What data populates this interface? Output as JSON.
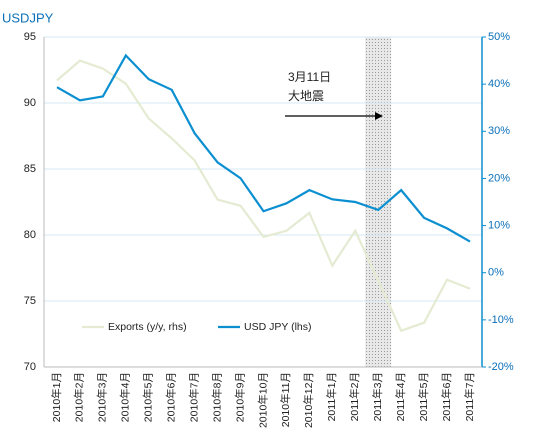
{
  "chart_data": {
    "type": "line",
    "title": "USDJPY",
    "categories": [
      "2010年1月",
      "2010年2月",
      "2010年3月",
      "2010年4月",
      "2010年5月",
      "2010年6月",
      "2010年7月",
      "2010年8月",
      "2010年9月",
      "2010年10月",
      "2010年11月",
      "2010年12月",
      "2011年1月",
      "2011年2月",
      "2011年3月",
      "2011年4月",
      "2011年5月",
      "2011年6月",
      "2011年7月"
    ],
    "series": [
      {
        "name": "Exports (y/y, rhs)",
        "color": "#e4ebd2",
        "axis": "y2",
        "values": [
          40.8,
          45,
          43.3,
          40.1,
          32.7,
          28.5,
          23.8,
          15.5,
          14.2,
          7.6,
          8.9,
          12.7,
          1.5,
          8.9,
          -1.7,
          -12.3,
          -10.6,
          -1.5,
          -3.4
        ]
      },
      {
        "name": "USD JPY (lhs)",
        "color": "#0b8fd1",
        "values": [
          91.2,
          90.2,
          90.5,
          93.6,
          91.8,
          91.0,
          87.7,
          85.5,
          84.3,
          81.8,
          82.4,
          83.4,
          82.7,
          82.5,
          81.9,
          83.4,
          81.3,
          80.5,
          79.5
        ]
      }
    ],
    "ylim": [
      70,
      95
    ],
    "yticks": [
      70,
      75,
      80,
      85,
      90,
      95
    ],
    "y2lim": [
      -20,
      50
    ],
    "y2ticks": [
      {
        "value": -20,
        "label": "-20%"
      },
      {
        "value": -10,
        "label": "-10%"
      },
      {
        "value": 0,
        "label": "0%"
      },
      {
        "value": 10,
        "label": "10%"
      },
      {
        "value": 20,
        "label": "20%"
      },
      {
        "value": 30,
        "label": "30%"
      },
      {
        "value": 40,
        "label": "40%"
      },
      {
        "value": 50,
        "label": "50%"
      }
    ],
    "grid": true,
    "highlight_category": "2011年3月",
    "annotation": [
      "3月11日",
      "大地震"
    ]
  }
}
